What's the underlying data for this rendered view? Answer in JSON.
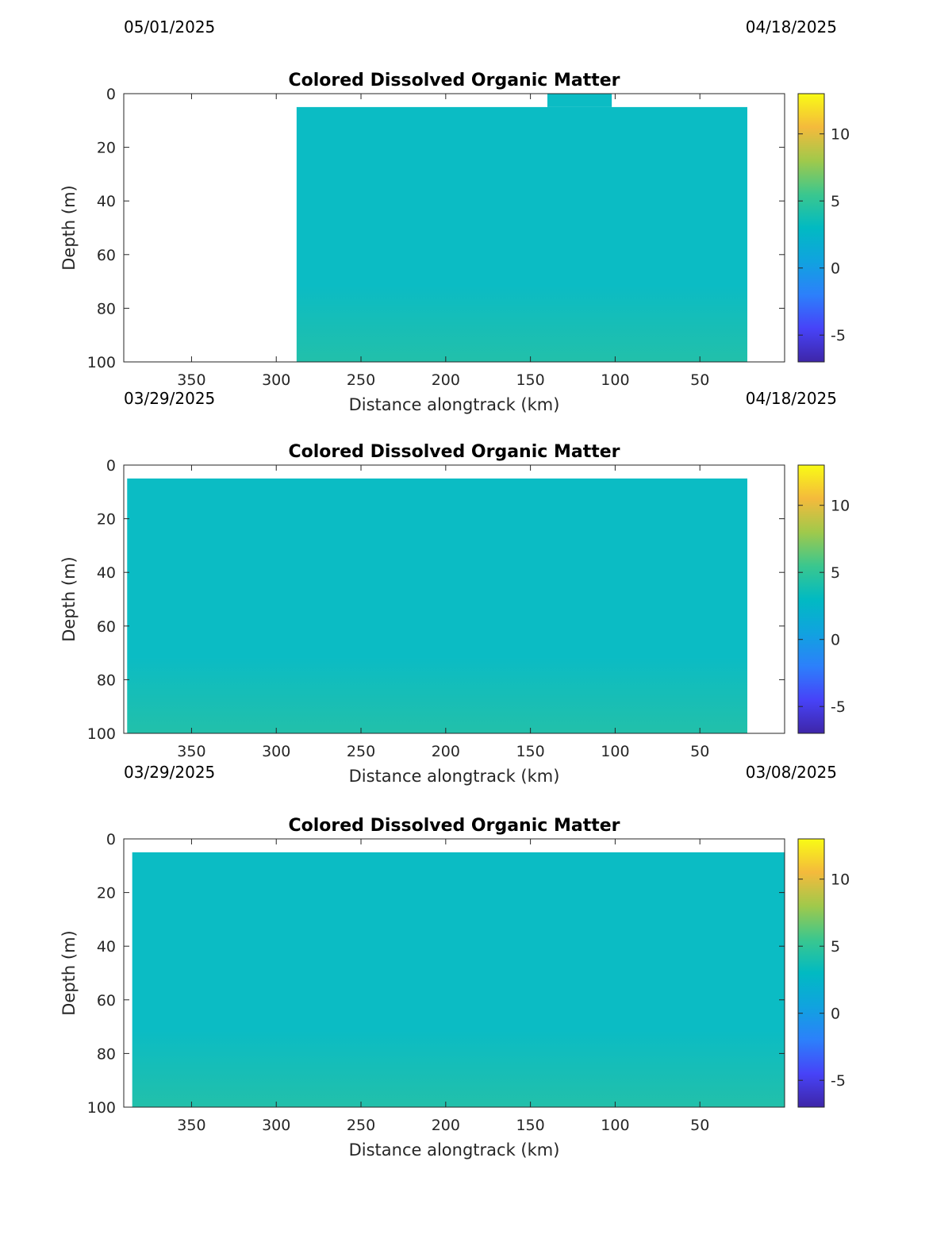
{
  "panels": [
    {
      "date_left": "05/01/2025",
      "date_right": "04/18/2025"
    },
    {
      "date_left": "03/29/2025",
      "date_right": "04/18/2025"
    },
    {
      "date_left": "03/29/2025",
      "date_right": "03/08/2025"
    }
  ],
  "colors": {
    "field_main": "#0bbcc4",
    "field_deep": "#22c0aa",
    "axis": "#262626",
    "colorbar_stops": [
      "#3e26a8",
      "#4743f8",
      "#2c80fb",
      "#10a3df",
      "#01bac2",
      "#3bc78e",
      "#a0c94b",
      "#f4ba3c",
      "#f9fb15"
    ]
  },
  "chart_data": [
    {
      "type": "heatmap",
      "title": "Colored Dissolved Organic Matter",
      "xlabel": "Distance alongtrack (km)",
      "ylabel": "Depth (m)",
      "xlim": [
        390,
        0
      ],
      "ylim": [
        0,
        100
      ],
      "x_reversed": true,
      "y_reversed": true,
      "xticks": [
        350,
        300,
        250,
        200,
        150,
        100,
        50
      ],
      "yticks": [
        0,
        20,
        40,
        60,
        80,
        100
      ],
      "colorbar": {
        "range": [
          -7,
          13
        ],
        "ticks": [
          -5,
          0,
          5,
          10
        ]
      },
      "data_extent_km": [
        288,
        22
      ],
      "data_depth_range_m": [
        5,
        100
      ],
      "shallow_patch": {
        "x_km": [
          140,
          102
        ],
        "depth_m": [
          0,
          5
        ]
      }
    },
    {
      "type": "heatmap",
      "title": "Colored Dissolved Organic Matter",
      "xlabel": "Distance alongtrack (km)",
      "ylabel": "Depth (m)",
      "xlim": [
        390,
        0
      ],
      "ylim": [
        0,
        100
      ],
      "x_reversed": true,
      "y_reversed": true,
      "xticks": [
        350,
        300,
        250,
        200,
        150,
        100,
        50
      ],
      "yticks": [
        0,
        20,
        40,
        60,
        80,
        100
      ],
      "colorbar": {
        "range": [
          -7,
          13
        ],
        "ticks": [
          -5,
          0,
          5,
          10
        ]
      },
      "data_extent_km": [
        388,
        22
      ],
      "data_depth_range_m": [
        5,
        100
      ]
    },
    {
      "type": "heatmap",
      "title": "Colored Dissolved Organic Matter",
      "xlabel": "Distance alongtrack (km)",
      "ylabel": "Depth (m)",
      "xlim": [
        390,
        0
      ],
      "ylim": [
        0,
        100
      ],
      "x_reversed": true,
      "y_reversed": true,
      "xticks": [
        350,
        300,
        250,
        200,
        150,
        100,
        50
      ],
      "yticks": [
        0,
        20,
        40,
        60,
        80,
        100
      ],
      "colorbar": {
        "range": [
          -7,
          13
        ],
        "ticks": [
          -5,
          0,
          5,
          10
        ]
      },
      "data_extent_km": [
        385,
        0
      ],
      "data_depth_range_m": [
        5,
        100
      ]
    }
  ]
}
